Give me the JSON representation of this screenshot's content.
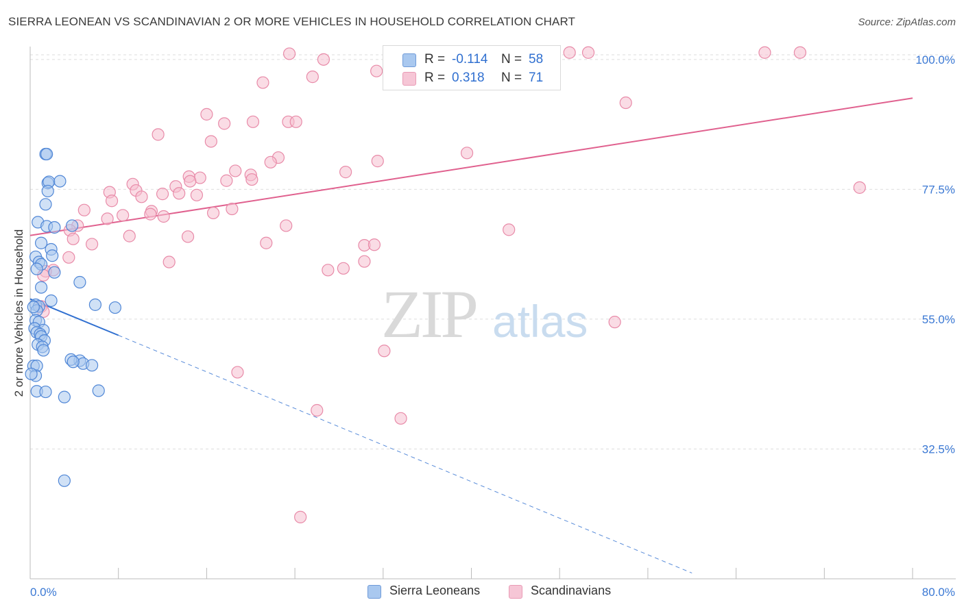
{
  "title": "SIERRA LEONEAN VS SCANDINAVIAN 2 OR MORE VEHICLES IN HOUSEHOLD CORRELATION CHART",
  "source": "Source: ZipAtlas.com",
  "watermark": {
    "zip": "ZIP",
    "atlas": "atlas"
  },
  "legend_top": [
    {
      "r_label": "R =",
      "r_value": "-0.114",
      "n_label": "N =",
      "n_value": "58"
    },
    {
      "r_label": "R =",
      "r_value": "0.318",
      "n_label": "N =",
      "n_value": "71"
    }
  ],
  "legend_bottom": [
    "Sierra Leoneans",
    "Scandinavians"
  ],
  "colors": {
    "blue_fill": "#a9c8ef",
    "blue_stroke": "#4f86d6",
    "blue_line": "#2f6fd0",
    "pink_fill": "#f6bfd0",
    "pink_stroke": "#e88aa8",
    "pink_line": "#e0608e",
    "tick_label": "#3a78d4",
    "grid": "#dddddd"
  },
  "chart_data": {
    "type": "scatter",
    "title": "SIERRA LEONEAN VS SCANDINAVIAN 2 OR MORE VEHICLES IN HOUSEHOLD CORRELATION CHART",
    "xlabel": "",
    "ylabel": "2 or more Vehicles in Household",
    "xlim": [
      0,
      80
    ],
    "ylim": [
      10,
      102
    ],
    "x_tick_labels": [
      "0.0%",
      "80.0%"
    ],
    "y_ticks": [
      32.5,
      55.0,
      77.5,
      100.0
    ],
    "y_tick_labels": [
      "32.5%",
      "55.0%",
      "77.5%",
      "100.0%"
    ],
    "grid": true,
    "legend_position": "top-center",
    "series": [
      {
        "name": "Sierra Leoneans",
        "R": -0.114,
        "N": 58,
        "trend": {
          "x": [
            0,
            8
          ],
          "y": [
            58.5,
            52.2
          ],
          "dashed_extension_to": [
            60,
            11.0
          ]
        },
        "points": [
          [
            1.4,
            83.6
          ],
          [
            1.5,
            83.6
          ],
          [
            1.6,
            78.6
          ],
          [
            1.7,
            78.8
          ],
          [
            2.7,
            78.9
          ],
          [
            1.6,
            77.2
          ],
          [
            1.4,
            74.9
          ],
          [
            0.7,
            71.8
          ],
          [
            1.5,
            71.1
          ],
          [
            2.2,
            70.9
          ],
          [
            3.8,
            71.2
          ],
          [
            1.0,
            68.2
          ],
          [
            1.9,
            67.1
          ],
          [
            2.0,
            66.0
          ],
          [
            0.5,
            65.8
          ],
          [
            0.8,
            64.9
          ],
          [
            1.0,
            64.5
          ],
          [
            0.6,
            63.7
          ],
          [
            2.2,
            63.1
          ],
          [
            4.5,
            61.4
          ],
          [
            1.0,
            60.5
          ],
          [
            1.9,
            58.2
          ],
          [
            0.5,
            57.5
          ],
          [
            0.8,
            57.2
          ],
          [
            0.6,
            56.5
          ],
          [
            0.3,
            57.1
          ],
          [
            7.7,
            57.0
          ],
          [
            5.9,
            57.5
          ],
          [
            0.5,
            54.8
          ],
          [
            0.8,
            54.5
          ],
          [
            0.4,
            53.4
          ],
          [
            1.2,
            53.1
          ],
          [
            0.6,
            52.7
          ],
          [
            0.9,
            52.4
          ],
          [
            1.0,
            52.0
          ],
          [
            1.3,
            51.3
          ],
          [
            0.7,
            50.6
          ],
          [
            1.1,
            50.2
          ],
          [
            1.2,
            49.6
          ],
          [
            4.5,
            47.8
          ],
          [
            3.7,
            48.0
          ],
          [
            4.8,
            47.3
          ],
          [
            5.6,
            47.0
          ],
          [
            3.9,
            47.6
          ],
          [
            0.3,
            46.9
          ],
          [
            0.6,
            46.9
          ],
          [
            0.5,
            45.2
          ],
          [
            0.1,
            45.5
          ],
          [
            0.6,
            42.5
          ],
          [
            1.4,
            42.4
          ],
          [
            6.2,
            42.6
          ],
          [
            3.1,
            41.5
          ],
          [
            3.1,
            27.0
          ]
        ]
      },
      {
        "name": "Scandinavians",
        "R": 0.318,
        "N": 71,
        "trend": {
          "x": [
            0,
            80
          ],
          "y": [
            69.5,
            93.3
          ]
        },
        "points": [
          [
            23.5,
            101.0
          ],
          [
            26.6,
            100.0
          ],
          [
            37.5,
            101.2
          ],
          [
            39.2,
            101.2
          ],
          [
            40.1,
            100.4
          ],
          [
            48.9,
            101.2
          ],
          [
            50.6,
            101.2
          ],
          [
            66.6,
            101.2
          ],
          [
            69.8,
            101.2
          ],
          [
            25.6,
            97.0
          ],
          [
            31.4,
            98.0
          ],
          [
            21.1,
            96.0
          ],
          [
            54.0,
            92.5
          ],
          [
            16.0,
            90.5
          ],
          [
            20.2,
            89.2
          ],
          [
            23.4,
            89.2
          ],
          [
            24.1,
            89.2
          ],
          [
            17.6,
            88.9
          ],
          [
            11.6,
            87.0
          ],
          [
            16.4,
            85.8
          ],
          [
            39.6,
            83.8
          ],
          [
            22.5,
            83.0
          ],
          [
            21.8,
            82.2
          ],
          [
            31.5,
            82.4
          ],
          [
            18.6,
            80.7
          ],
          [
            28.6,
            80.5
          ],
          [
            20.0,
            80.0
          ],
          [
            15.4,
            79.5
          ],
          [
            20.1,
            79.2
          ],
          [
            17.8,
            79.0
          ],
          [
            13.2,
            78.0
          ],
          [
            14.4,
            79.7
          ],
          [
            9.3,
            78.4
          ],
          [
            14.5,
            78.9
          ],
          [
            75.2,
            77.8
          ],
          [
            7.2,
            77.0
          ],
          [
            9.6,
            77.3
          ],
          [
            10.1,
            76.2
          ],
          [
            13.5,
            76.8
          ],
          [
            12.0,
            76.7
          ],
          [
            15.1,
            76.5
          ],
          [
            7.4,
            75.5
          ],
          [
            18.3,
            74.1
          ],
          [
            4.9,
            73.9
          ],
          [
            11.0,
            73.7
          ],
          [
            10.9,
            73.2
          ],
          [
            16.6,
            73.4
          ],
          [
            8.4,
            73.0
          ],
          [
            12.1,
            72.8
          ],
          [
            7.0,
            72.4
          ],
          [
            4.3,
            71.2
          ],
          [
            23.2,
            71.2
          ],
          [
            3.6,
            70.4
          ],
          [
            43.4,
            70.5
          ],
          [
            9.0,
            69.4
          ],
          [
            14.3,
            69.3
          ],
          [
            3.9,
            68.9
          ],
          [
            5.6,
            68.0
          ],
          [
            21.4,
            68.2
          ],
          [
            30.3,
            67.8
          ],
          [
            31.2,
            67.9
          ],
          [
            3.5,
            65.7
          ],
          [
            12.6,
            64.9
          ],
          [
            30.3,
            65.0
          ],
          [
            28.4,
            63.8
          ],
          [
            2.1,
            63.5
          ],
          [
            1.4,
            63.3
          ],
          [
            27.0,
            63.5
          ],
          [
            1.2,
            62.6
          ],
          [
            1.0,
            57.2
          ],
          [
            1.2,
            56.3
          ],
          [
            53.0,
            54.5
          ],
          [
            32.1,
            49.5
          ],
          [
            18.8,
            45.8
          ],
          [
            26.0,
            39.2
          ],
          [
            33.6,
            37.8
          ],
          [
            24.5,
            20.7
          ]
        ]
      }
    ]
  }
}
